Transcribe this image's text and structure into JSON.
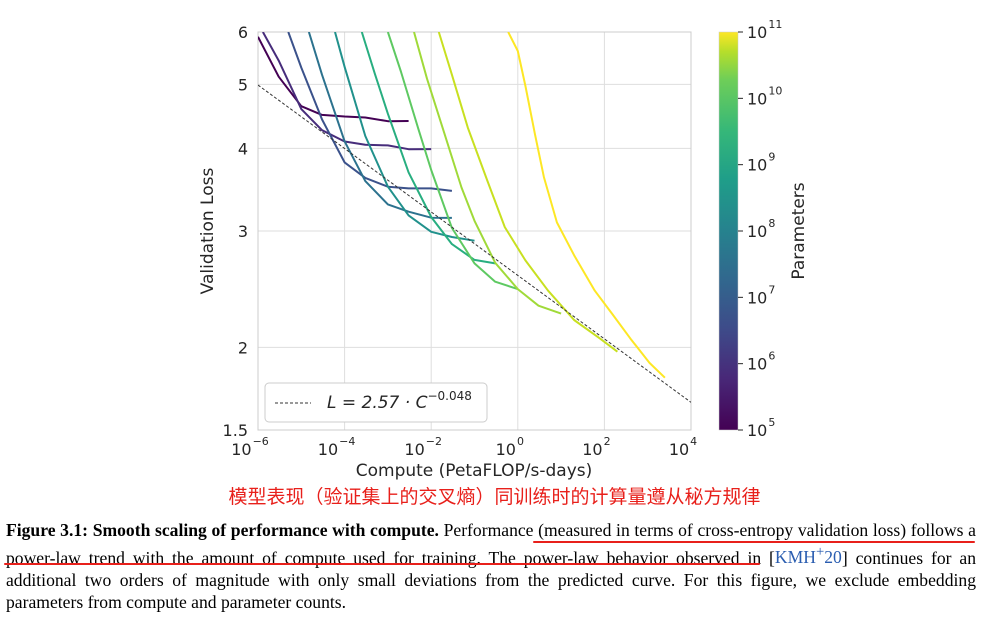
{
  "chart_data": {
    "type": "line",
    "xlabel": "Compute (PetaFLOP/s-days)",
    "ylabel": "Validation Loss",
    "x_scale": "log",
    "y_scale": "log",
    "xlim": [
      1e-06,
      10000
    ],
    "ylim": [
      1.5,
      6
    ],
    "grid": true,
    "x_ticks": [
      {
        "base": "10",
        "exp": "−6"
      },
      {
        "base": "10",
        "exp": "−4"
      },
      {
        "base": "10",
        "exp": "−2"
      },
      {
        "base": "10",
        "exp": "0"
      },
      {
        "base": "10",
        "exp": "2"
      },
      {
        "base": "10",
        "exp": "4"
      }
    ],
    "y_ticks": [
      "1.5",
      "2",
      "3",
      "4",
      "5",
      "6"
    ],
    "legend": {
      "position": "lower-left",
      "label": "L = 2.57 · C",
      "label_exp": "−0.048"
    },
    "fit_line": {
      "a": 2.57,
      "b": -0.048
    },
    "colorbar": {
      "label": "Parameters",
      "scale": "log",
      "range": [
        100000,
        100000000000
      ],
      "tick_labels": [
        {
          "base": "10",
          "exp": "5"
        },
        {
          "base": "10",
          "exp": "6"
        },
        {
          "base": "10",
          "exp": "7"
        },
        {
          "base": "10",
          "exp": "8"
        },
        {
          "base": "10",
          "exp": "9"
        },
        {
          "base": "10",
          "exp": "10"
        },
        {
          "base": "10",
          "exp": "11"
        }
      ],
      "colormap": "viridis"
    },
    "series": [
      {
        "params": 100000,
        "color": "#440154",
        "x": [
          1e-06,
          3e-06,
          1e-05,
          3e-05,
          0.0001,
          0.0003,
          0.001,
          0.003
        ],
        "y": [
          5.9,
          5.15,
          4.62,
          4.52,
          4.47,
          4.43,
          4.41,
          4.4
        ]
      },
      {
        "params": 300000,
        "color": "#472d7b",
        "x": [
          1.3e-06,
          3e-06,
          1e-05,
          3e-05,
          0.0001,
          0.0003,
          0.001,
          0.003,
          0.01
        ],
        "y": [
          6,
          5.4,
          4.6,
          4.25,
          4.12,
          4.05,
          4.02,
          4.0,
          3.99
        ]
      },
      {
        "params": 1000000,
        "color": "#3b528b",
        "x": [
          5e-06,
          1e-05,
          3e-05,
          0.0001,
          0.0003,
          0.001,
          0.003,
          0.01,
          0.03
        ],
        "y": [
          6,
          5.3,
          4.4,
          3.82,
          3.6,
          3.52,
          3.48,
          3.46,
          3.45
        ]
      },
      {
        "params": 3000000,
        "color": "#2c728e",
        "x": [
          1.5e-05,
          3e-05,
          0.0001,
          0.0003,
          0.001,
          0.003,
          0.01,
          0.03
        ],
        "y": [
          6,
          5.2,
          4.1,
          3.55,
          3.3,
          3.2,
          3.16,
          3.14
        ]
      },
      {
        "params": 10000000,
        "color": "#21918c",
        "x": [
          6e-05,
          0.0001,
          0.0003,
          0.001,
          0.003,
          0.01,
          0.03,
          0.1
        ],
        "y": [
          6,
          5.3,
          4.2,
          3.5,
          3.15,
          3.0,
          2.93,
          2.9
        ]
      },
      {
        "params": 30000000,
        "color": "#28ae80",
        "x": [
          0.00025,
          0.0005,
          0.001,
          0.003,
          0.01,
          0.03,
          0.1,
          0.3
        ],
        "y": [
          6,
          5.2,
          4.5,
          3.7,
          3.15,
          2.85,
          2.72,
          2.68
        ]
      },
      {
        "params": 100000000,
        "color": "#5ec962",
        "x": [
          0.001,
          0.002,
          0.005,
          0.01,
          0.03,
          0.1,
          0.3,
          1
        ],
        "y": [
          6,
          5.2,
          4.3,
          3.7,
          3.05,
          2.68,
          2.5,
          2.45
        ]
      },
      {
        "params": 400000000,
        "color": "#a0da39",
        "x": [
          0.004,
          0.008,
          0.02,
          0.05,
          0.1,
          0.3,
          1,
          3,
          10
        ],
        "y": [
          6,
          5.1,
          4.2,
          3.5,
          3.1,
          2.7,
          2.45,
          2.3,
          2.25
        ]
      },
      {
        "params": 1500000000,
        "color": "#c8e020",
        "x": [
          0.015,
          0.03,
          0.07,
          0.2,
          0.5,
          1.5,
          5,
          20,
          80,
          200
        ],
        "y": [
          6,
          5.2,
          4.3,
          3.55,
          3.05,
          2.7,
          2.45,
          2.2,
          2.05,
          1.97
        ]
      },
      {
        "params": 100000000000,
        "color": "#fde725",
        "x": [
          0.6,
          1,
          1.5,
          2.5,
          4,
          8,
          20,
          60,
          150,
          400,
          1100,
          2500
        ],
        "y": [
          6,
          5.6,
          5.0,
          4.2,
          3.6,
          3.1,
          2.75,
          2.45,
          2.25,
          2.05,
          1.9,
          1.8
        ]
      }
    ]
  },
  "annotation_text": "模型表现（验证集上的交叉熵）同训练时的计算量遵从秘方规律",
  "caption": {
    "label": "Figure 3.1:",
    "bold_title": "Smooth scaling of performance with compute.",
    "sentence1": "Performance (measured in terms of cross-entropy validation loss) follows a power-law trend with the amount of compute used for training.",
    "sentence2_pre": "The power-law behavior observed in [",
    "citation": "KMH",
    "citation_sup": "+",
    "citation_year": "20",
    "sentence2_post": "] continues for an additional two orders of magnitude with only small deviations from the predicted curve. For this figure, we exclude embedding parameters from compute and parameter counts."
  },
  "colors": {
    "annotation_red": "#e8201b",
    "grid": "#dedede",
    "citation_blue": "#2a5db0"
  }
}
